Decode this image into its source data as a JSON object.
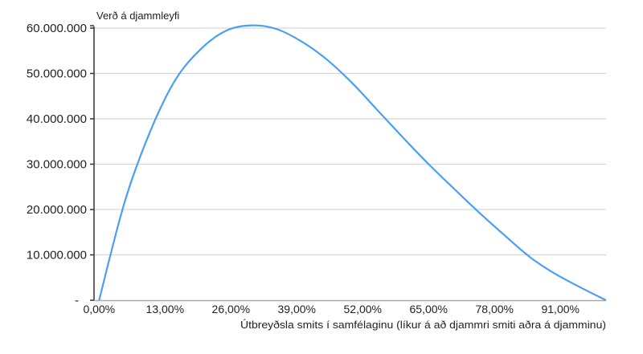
{
  "chart_data": {
    "type": "line",
    "title": "",
    "ylabel": "Verð á djammleyfi",
    "xlabel": "Útbreyðsla smits í samfélaginu (líkur á að djammri smiti aðra á djamminu)",
    "xlim": [
      0,
      100
    ],
    "ylim": [
      0,
      60000000
    ],
    "grid": true,
    "legend": "none",
    "line_color": "#4a9ff5",
    "x_tick_values": [
      0,
      13,
      26,
      39,
      52,
      65,
      78,
      91
    ],
    "x_tick_labels": [
      "0,00%",
      "13,00%",
      "26,00%",
      "39,00%",
      "52,00%",
      "65,00%",
      "78,00%",
      "91,00%"
    ],
    "y_tick_values": [
      0,
      10000000,
      20000000,
      30000000,
      40000000,
      50000000,
      60000000
    ],
    "y_tick_labels": [
      "-",
      "10.000.000",
      "20.000.000",
      "30.000.000",
      "40.000.000",
      "50.000.000",
      "60.000.000"
    ],
    "series": [
      {
        "x": [
          0,
          5,
          10,
          15,
          20,
          25,
          30,
          35,
          40,
          45,
          50,
          55,
          60,
          65,
          70,
          75,
          80,
          85,
          90,
          95,
          100
        ],
        "y": [
          0,
          21500000,
          37000000,
          48500000,
          55300000,
          59400000,
          60600000,
          59800000,
          57000000,
          53000000,
          47800000,
          41800000,
          35800000,
          30000000,
          24600000,
          19300000,
          14300000,
          9500000,
          5800000,
          2800000,
          0
        ]
      }
    ]
  }
}
